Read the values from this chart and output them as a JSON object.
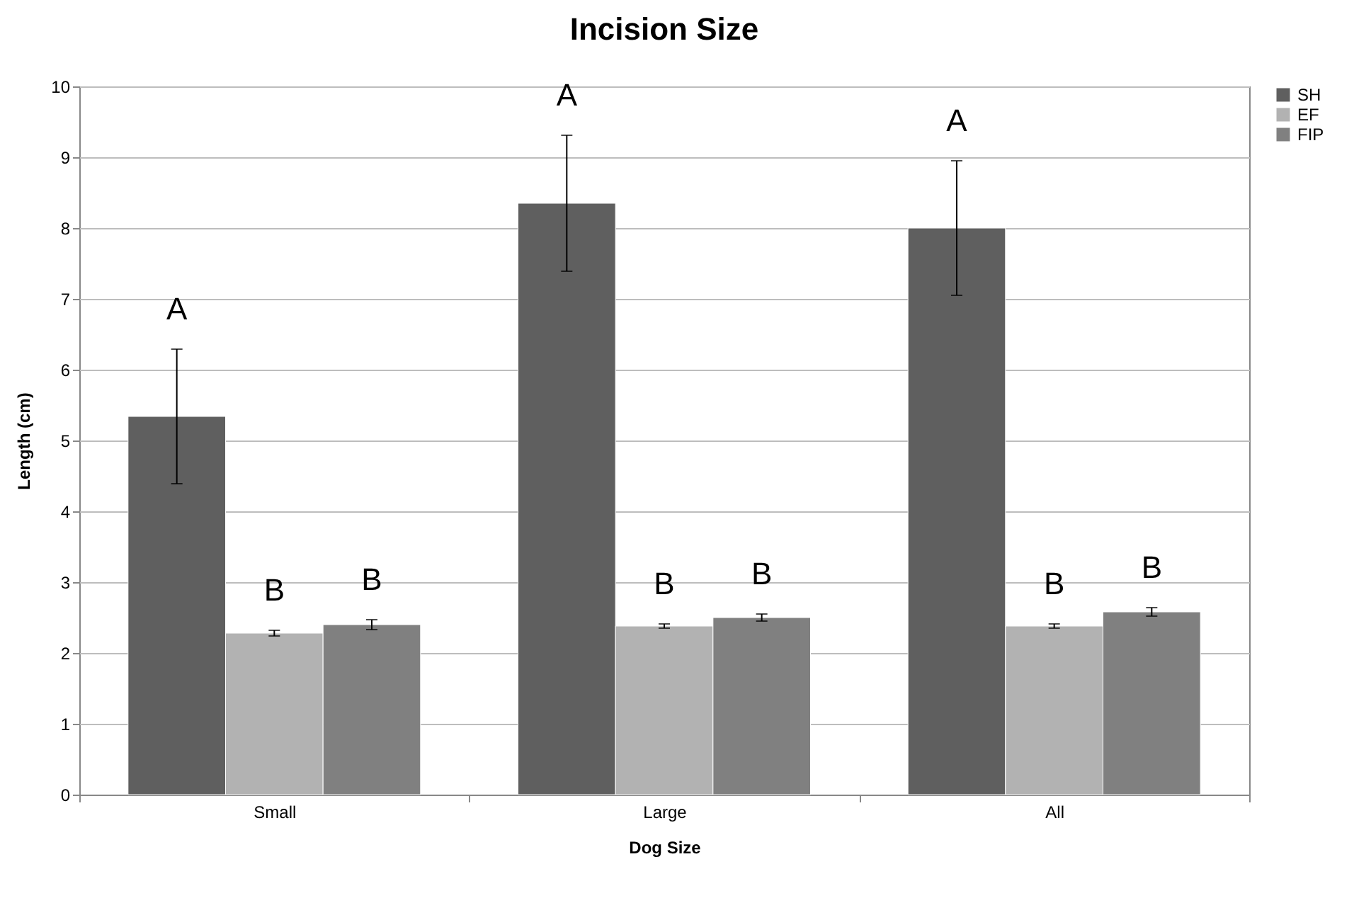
{
  "chart_data": {
    "type": "bar",
    "title": "Incision Size",
    "xlabel": "Dog Size",
    "ylabel": "Length (cm)",
    "categories": [
      "Small",
      "Large",
      "All"
    ],
    "series": [
      {
        "name": "SH",
        "color": "#5f5f5f",
        "values": [
          5.34,
          8.35,
          8.0
        ],
        "errors": [
          0.95,
          0.96,
          0.95
        ]
      },
      {
        "name": "EF",
        "color": "#b2b2b2",
        "values": [
          2.28,
          2.38,
          2.38
        ],
        "errors": [
          0.04,
          0.03,
          0.03
        ]
      },
      {
        "name": "FIP",
        "color": "#808080",
        "values": [
          2.4,
          2.5,
          2.58
        ],
        "errors": [
          0.07,
          0.05,
          0.06
        ]
      }
    ],
    "ylim": [
      0,
      10
    ],
    "yticks": [
      0,
      1,
      2,
      3,
      4,
      5,
      6,
      7,
      8,
      9,
      10
    ],
    "grid": "y",
    "legend": "right",
    "annotations": [
      "A",
      "B",
      "B",
      "A",
      "B",
      "B",
      "A",
      "B",
      "B"
    ]
  }
}
